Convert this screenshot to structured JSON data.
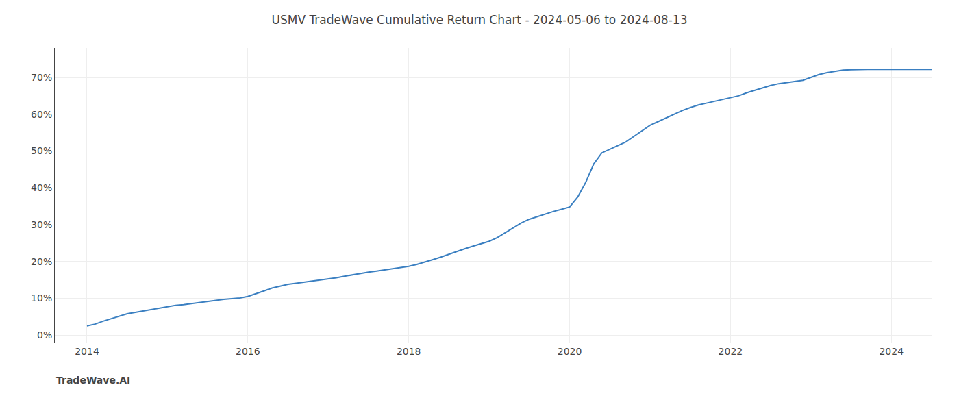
{
  "chart_data": {
    "type": "line",
    "title": "USMV TradeWave Cumulative Return Chart - 2024-05-06 to 2024-08-13",
    "annotations": [
      "TradeWave.AI"
    ],
    "x": [
      2014.0,
      2014.1,
      2014.2,
      2014.3,
      2014.4,
      2014.5,
      2014.6,
      2014.7,
      2014.8,
      2014.9,
      2015.0,
      2015.1,
      2015.2,
      2015.3,
      2015.4,
      2015.5,
      2015.6,
      2015.7,
      2015.8,
      2015.9,
      2016.0,
      2016.1,
      2016.2,
      2016.3,
      2016.4,
      2016.5,
      2016.6,
      2016.7,
      2016.8,
      2016.9,
      2017.0,
      2017.1,
      2017.2,
      2017.3,
      2017.4,
      2017.5,
      2017.6,
      2017.7,
      2017.8,
      2017.9,
      2018.0,
      2018.1,
      2018.2,
      2018.3,
      2018.4,
      2018.5,
      2018.6,
      2018.7,
      2018.8,
      2018.9,
      2019.0,
      2019.1,
      2019.2,
      2019.3,
      2019.4,
      2019.5,
      2019.6,
      2019.7,
      2019.8,
      2019.9,
      2020.0,
      2020.1,
      2020.2,
      2020.3,
      2020.4,
      2020.5,
      2020.6,
      2020.7,
      2020.8,
      2020.9,
      2021.0,
      2021.1,
      2021.2,
      2021.3,
      2021.4,
      2021.5,
      2021.6,
      2021.7,
      2021.8,
      2021.9,
      2022.0,
      2022.1,
      2022.2,
      2022.3,
      2022.4,
      2022.5,
      2022.6,
      2022.7,
      2022.8,
      2022.9,
      2023.0,
      2023.1,
      2023.2,
      2023.3,
      2023.4,
      2023.5,
      2023.6,
      2023.7,
      2023.8,
      2023.9,
      2024.0,
      2024.1,
      2024.2,
      2024.3,
      2024.4,
      2024.5
    ],
    "values": [
      2.5,
      3.0,
      3.8,
      4.5,
      5.2,
      5.8,
      6.2,
      6.6,
      7.0,
      7.4,
      7.8,
      8.1,
      8.3,
      8.6,
      8.9,
      9.2,
      9.5,
      9.7,
      9.9,
      10.1,
      10.5,
      11.2,
      12.0,
      12.8,
      13.3,
      13.8,
      14.1,
      14.4,
      14.7,
      14.9,
      15.2,
      15.6,
      16.0,
      16.4,
      16.8,
      17.1,
      17.4,
      17.7,
      18.0,
      18.3,
      18.7,
      19.2,
      19.8,
      20.5,
      21.2,
      22.0,
      22.8,
      23.5,
      24.2,
      24.8,
      25.5,
      26.5,
      27.8,
      29.2,
      30.5,
      31.5,
      32.2,
      33.0,
      33.6,
      34.2,
      34.8,
      37.5,
      41.5,
      46.5,
      49.5,
      50.5,
      51.5,
      52.5,
      54.0,
      55.5,
      57.0,
      58.0,
      59.0,
      60.0,
      61.0,
      61.8,
      62.5,
      63.0,
      63.5,
      64.0,
      64.5,
      65.0,
      65.8,
      66.5,
      67.2,
      67.8,
      68.3,
      68.6,
      68.9,
      69.2,
      70.0,
      70.8,
      71.3,
      71.7,
      72.0,
      72.1,
      72.2,
      72.2,
      72.2,
      72.2,
      72.2,
      72.2,
      72.2,
      72.2,
      72.2,
      72.2
    ],
    "color": "#3a7fc1",
    "xlim": [
      2013.6,
      2024.5
    ],
    "xticks": [
      2014,
      2016,
      2018,
      2020,
      2022,
      2024
    ],
    "ylim": [
      -2,
      78
    ],
    "yticks": [
      {
        "value": 0,
        "label": "0%"
      },
      {
        "value": 10,
        "label": "10%"
      },
      {
        "value": 20,
        "label": "20%"
      },
      {
        "value": 30,
        "label": "30%"
      },
      {
        "value": 40,
        "label": "40%"
      },
      {
        "value": 50,
        "label": "50%"
      },
      {
        "value": 60,
        "label": "60%"
      },
      {
        "value": 70,
        "label": "70%"
      }
    ],
    "grid": true
  }
}
